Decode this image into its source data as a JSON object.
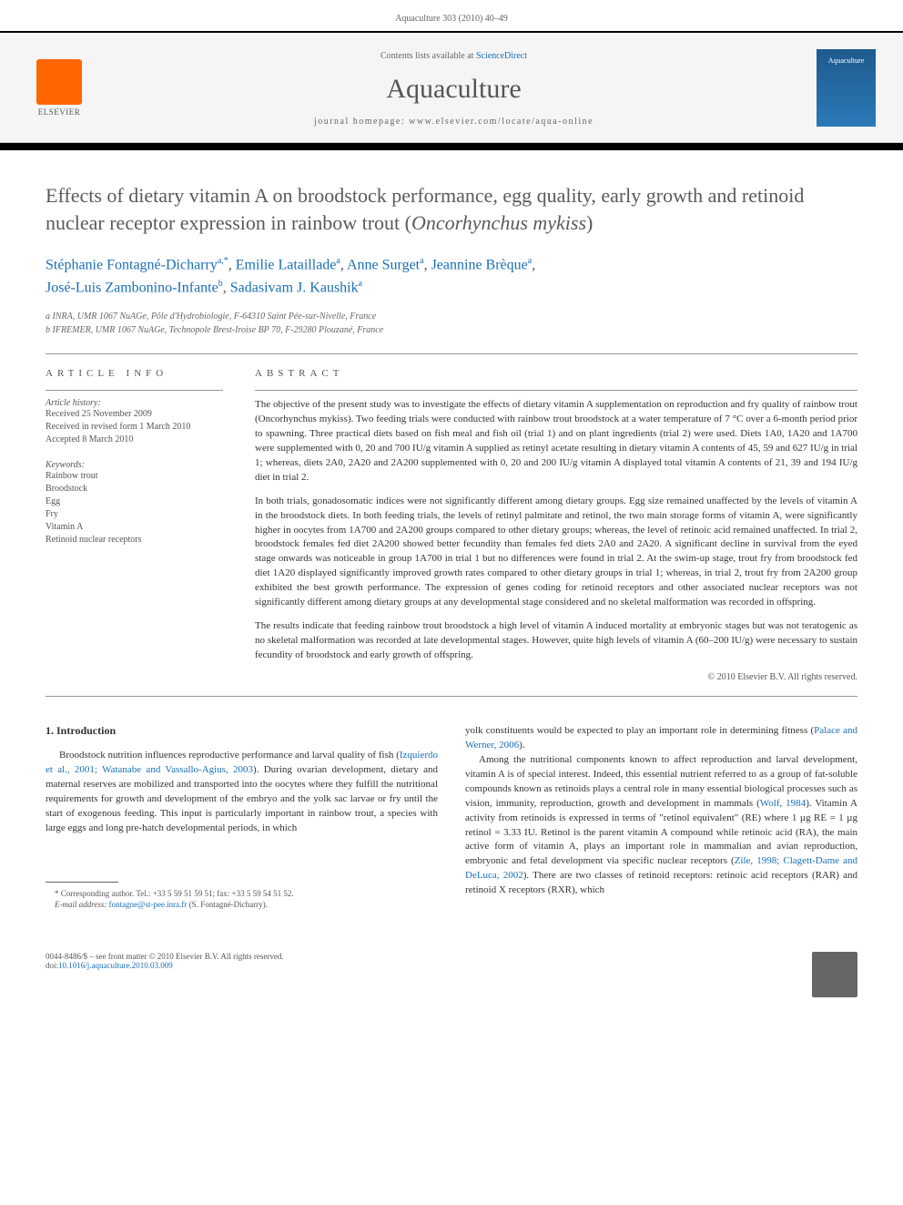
{
  "page_header": "Aquaculture 303 (2010) 40–49",
  "top_bar": {
    "elsevier_label": "ELSEVIER",
    "contents_prefix": "Contents lists available at ",
    "sciencedirect": "ScienceDirect",
    "journal_name": "Aquaculture",
    "homepage_prefix": "journal homepage: ",
    "homepage_url": "www.elsevier.com/locate/aqua-online",
    "cover_label": "Aquaculture"
  },
  "article": {
    "title_part1": "Effects of dietary vitamin A on broodstock performance, egg quality, early growth and retinoid nuclear receptor expression in rainbow trout (",
    "title_italic": "Oncorhynchus mykiss",
    "title_part2": ")",
    "authors_html": "Stéphanie Fontagné-Dicharry",
    "authors": [
      {
        "name": "Stéphanie Fontagné-Dicharry",
        "sup": "a,",
        "star": "*"
      },
      {
        "name": "Emilie Lataillade",
        "sup": "a"
      },
      {
        "name": "Anne Surget",
        "sup": "a"
      },
      {
        "name": "Jeannine Brèque",
        "sup": "a"
      },
      {
        "name": "José-Luis Zambonino-Infante",
        "sup": "b"
      },
      {
        "name": "Sadasivam J. Kaushik",
        "sup": "a"
      }
    ],
    "affiliations": [
      "a INRA, UMR 1067 NuAGe, Pôle d'Hydrobiologie, F-64310 Saint Pée-sur-Nivelle, France",
      "b IFREMER, UMR 1067 NuAGe, Technopole Brest-Iroise BP 70, F-29280 Plouzané, France"
    ]
  },
  "info": {
    "heading": "ARTICLE INFO",
    "history_label": "Article history:",
    "history": [
      "Received 25 November 2009",
      "Received in revised form 1 March 2010",
      "Accepted 8 March 2010"
    ],
    "keywords_label": "Keywords:",
    "keywords": [
      "Rainbow trout",
      "Broodstock",
      "Egg",
      "Fry",
      "Vitamin A",
      "Retinoid nuclear receptors"
    ]
  },
  "abstract": {
    "heading": "ABSTRACT",
    "p1": "The objective of the present study was to investigate the effects of dietary vitamin A supplementation on reproduction and fry quality of rainbow trout (Oncorhynchus mykiss). Two feeding trials were conducted with rainbow trout broodstock at a water temperature of 7 °C over a 6-month period prior to spawning. Three practical diets based on fish meal and fish oil (trial 1) and on plant ingredients (trial 2) were used. Diets 1A0, 1A20 and 1A700 were supplemented with 0, 20 and 700 IU/g vitamin A supplied as retinyl acetate resulting in dietary vitamin A contents of 45, 59 and 627 IU/g in trial 1; whereas, diets 2A0, 2A20 and 2A200 supplemented with 0, 20 and 200 IU/g vitamin A displayed total vitamin A contents of 21, 39 and 194 IU/g diet in trial 2.",
    "p2": "In both trials, gonadosomatic indices were not significantly different among dietary groups. Egg size remained unaffected by the levels of vitamin A in the broodstock diets. In both feeding trials, the levels of retinyl palmitate and retinol, the two main storage forms of vitamin A, were significantly higher in oocytes from 1A700 and 2A200 groups compared to other dietary groups; whereas, the level of retinoic acid remained unaffected. In trial 2, broodstock females fed diet 2A200 showed better fecundity than females fed diets 2A0 and 2A20. A significant decline in survival from the eyed stage onwards was noticeable in group 1A700 in trial 1 but no differences were found in trial 2. At the swim-up stage, trout fry from broodstock fed diet 1A20 displayed significantly improved growth rates compared to other dietary groups in trial 1; whereas, in trial 2, trout fry from 2A200 group exhibited the best growth performance. The expression of genes coding for retinoid receptors and other associated nuclear receptors was not significantly different among dietary groups at any developmental stage considered and no skeletal malformation was recorded in offspring.",
    "p3": "The results indicate that feeding rainbow trout broodstock a high level of vitamin A induced mortality at embryonic stages but was not teratogenic as no skeletal malformation was recorded at late developmental stages. However, quite high levels of vitamin A (60–200 IU/g) were necessary to sustain fecundity of broodstock and early growth of offspring.",
    "copyright": "© 2010 Elsevier B.V. All rights reserved."
  },
  "body": {
    "section_heading": "1. Introduction",
    "col1_p1_a": "Broodstock nutrition influences reproductive performance and larval quality of fish (",
    "col1_ref1": "Izquierdo et al., 2001; Watanabe and Vassallo-Agius, 2003",
    "col1_p1_b": "). During ovarian development, dietary and maternal reserves are mobilized and transported into the oocytes where they fulfill the nutritional requirements for growth and development of the embryo and the yolk sac larvae or fry until the start of exogenous feeding. This input is particularly important in rainbow trout, a species with large eggs and long pre-hatch developmental periods, in which",
    "col2_p1_a": "yolk constituents would be expected to play an important role in determining fitness (",
    "col2_ref1": "Palace and Werner, 2006",
    "col2_p1_b": ").",
    "col2_p2_a": "Among the nutritional components known to affect reproduction and larval development, vitamin A is of special interest. Indeed, this essential nutrient referred to as a group of fat-soluble compounds known as retinoids plays a central role in many essential biological processes such as vision, immunity, reproduction, growth and development in mammals (",
    "col2_ref2": "Wolf, 1984",
    "col2_p2_b": "). Vitamin A activity from retinoids is expressed in terms of \"retinol equivalent\" (RE) where 1 µg RE = 1 µg retinol = 3.33 IU. Retinol is the parent vitamin A compound while retinoic acid (RA), the main active form of vitamin A, plays an important role in mammalian and avian reproduction, embryonic and fetal development via specific nuclear receptors (",
    "col2_ref3": "Zile, 1998; Clagett-Dame and DeLuca, 2002",
    "col2_p2_c": "). There are two classes of retinoid receptors: retinoic acid receptors (RAR) and retinoid X receptors (RXR), which"
  },
  "footnote": {
    "line1": "* Corresponding author. Tel.: +33 5 59 51 59 51; fax: +33 5 59 54 51 52.",
    "line2_a": "E-mail address: ",
    "line2_email": "fontagne@st-pee.inra.fr",
    "line2_b": " (S. Fontagné-Dicharry)."
  },
  "footer": {
    "copyright": "0044-8486/$ – see front matter © 2010 Elsevier B.V. All rights reserved.",
    "doi_prefix": "doi:",
    "doi": "10.1016/j.aquaculture.2010.03.009"
  },
  "colors": {
    "link": "#1a6fb5",
    "text": "#333333",
    "muted": "#666666",
    "elsevier_orange": "#ff6600",
    "cover_blue": "#1e5a8e"
  }
}
